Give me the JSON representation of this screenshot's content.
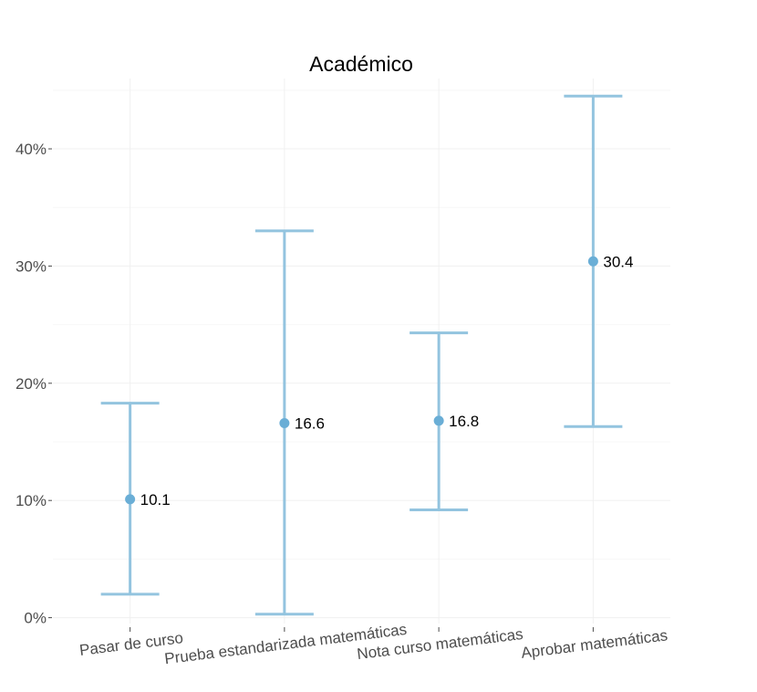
{
  "chart_data": {
    "type": "errorbar",
    "title": "Académico",
    "xlabel": "",
    "ylabel": "",
    "ylim": [
      -0.5,
      46
    ],
    "yticks": [
      0,
      10,
      20,
      30,
      40
    ],
    "ytick_labels": [
      "0%",
      "10%",
      "20%",
      "30%",
      "40%"
    ],
    "categories": [
      "Pasar de curso",
      "Prueba estandarizada matemáticas",
      "Nota curso matemáticas",
      "Aprobar matemáticas"
    ],
    "values": [
      10.1,
      16.6,
      16.8,
      30.4
    ],
    "value_labels": [
      "10.1",
      "16.6",
      "16.8",
      "30.4"
    ],
    "lower": [
      2.0,
      0.3,
      9.2,
      16.3
    ],
    "upper": [
      18.3,
      33.0,
      24.3,
      44.5
    ],
    "grid": true,
    "colors": {
      "bar": "#93c4df",
      "point": "#6aaed6"
    }
  }
}
